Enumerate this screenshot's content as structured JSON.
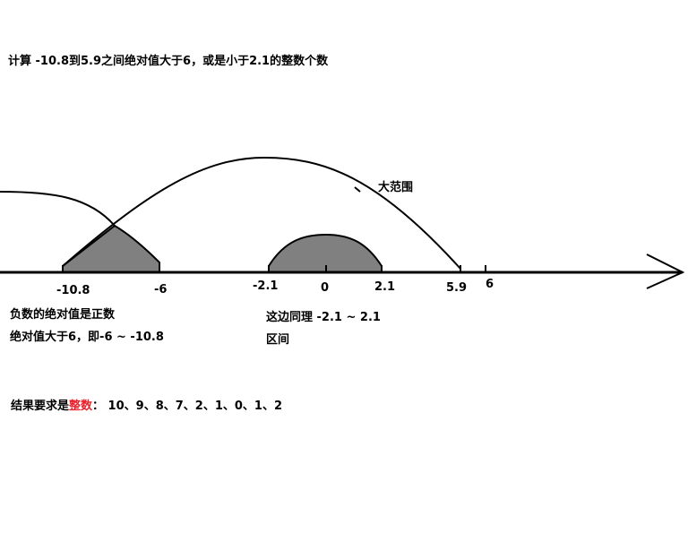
{
  "problem": "计算 -10.8到5.9之间绝对值大于6，或是小于2.1的整数个数",
  "arc_label": "大范围",
  "ticks": [
    {
      "value": "-10.8"
    },
    {
      "value": "-6"
    },
    {
      "value": "-2.1"
    },
    {
      "value": "0"
    },
    {
      "value": "2.1"
    },
    {
      "value": "5.9"
    },
    {
      "value": "6"
    }
  ],
  "note_left": {
    "line1": "负数的绝对值是正数",
    "line2": "绝对值大于6，即-6 ~ -10.8"
  },
  "note_middle": {
    "line1": "这边同理 -2.1 ~ 2.1",
    "line2": "区间"
  },
  "result": {
    "prefix": "结果要求是",
    "highlight": "整数",
    "suffix": "： 10、9、8、7、2、1、0、1、2"
  },
  "colors": {
    "shade": "#808080",
    "highlight": "#e8202a"
  }
}
